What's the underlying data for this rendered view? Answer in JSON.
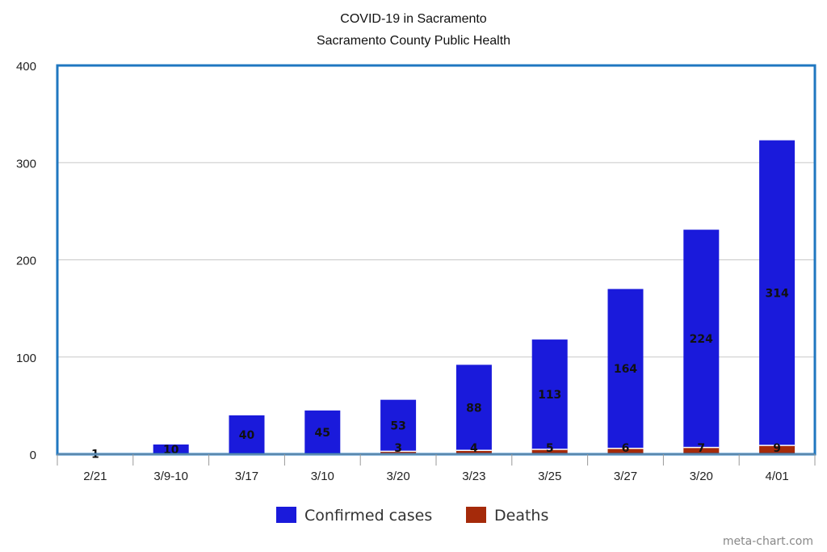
{
  "chart_data": {
    "type": "bar",
    "stacked": true,
    "title": "COVID-19 in Sacramento",
    "subtitle": "Sacramento County Public Health",
    "xlabel": "",
    "ylabel": "",
    "ylim": [
      0,
      400
    ],
    "yticks": [
      "0",
      "100",
      "200",
      "300",
      "400"
    ],
    "grid": true,
    "legend_position": "bottom",
    "categories": [
      "2/21",
      "3/9-10",
      "3/17",
      "3/10",
      "3/20",
      "3/23",
      "3/25",
      "3/27",
      "3/20",
      "4/01"
    ],
    "series": [
      {
        "name": "Deaths",
        "color": "#a52a0a",
        "values": [
          0,
          0,
          0,
          0,
          3,
          4,
          5,
          6,
          7,
          9
        ],
        "labels": [
          "",
          "",
          "",
          "",
          "3",
          "4",
          "5",
          "6",
          "7",
          "9"
        ]
      },
      {
        "name": "Confirmed cases",
        "color": "#1a1adb",
        "values": [
          1,
          10,
          40,
          45,
          53,
          88,
          113,
          164,
          224,
          314
        ],
        "labels": [
          "1",
          "10",
          "40",
          "45",
          "53",
          "88",
          "113",
          "164",
          "224",
          "314"
        ]
      }
    ],
    "legend": [
      "Confirmed cases",
      "Deaths"
    ],
    "credit": "meta-chart.com"
  }
}
